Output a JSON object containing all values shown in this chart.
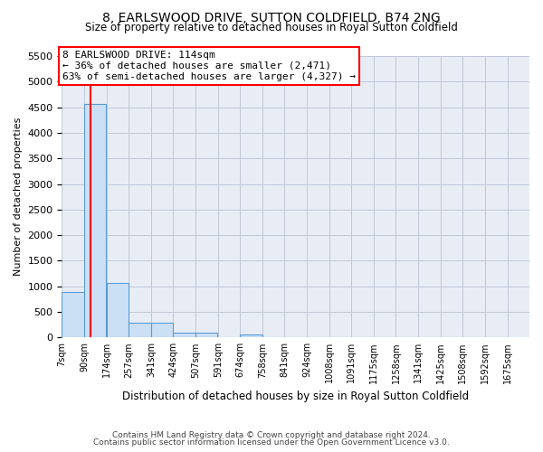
{
  "title": "8, EARLSWOOD DRIVE, SUTTON COLDFIELD, B74 2NG",
  "subtitle": "Size of property relative to detached houses in Royal Sutton Coldfield",
  "xlabel": "Distribution of detached houses by size in Royal Sutton Coldfield",
  "ylabel": "Number of detached properties",
  "footer1": "Contains HM Land Registry data © Crown copyright and database right 2024.",
  "footer2": "Contains public sector information licensed under the Open Government Licence v3.0.",
  "bar_color": "#cce0f5",
  "bar_edge_color": "#5b9bd5",
  "grid_color": "#c0c8d8",
  "background_color": "#e8edf5",
  "annotation_text": "8 EARLSWOOD DRIVE: 114sqm\n← 36% of detached houses are smaller (2,471)\n63% of semi-detached houses are larger (4,327) →",
  "annotation_box_color": "white",
  "annotation_box_edge": "red",
  "vline_color": "red",
  "vline_x": 114,
  "categories": [
    "7sqm",
    "90sqm",
    "174sqm",
    "257sqm",
    "341sqm",
    "424sqm",
    "507sqm",
    "591sqm",
    "674sqm",
    "758sqm",
    "841sqm",
    "924sqm",
    "1008sqm",
    "1091sqm",
    "1175sqm",
    "1258sqm",
    "1341sqm",
    "1425sqm",
    "1508sqm",
    "1592sqm",
    "1675sqm"
  ],
  "bin_edges": [
    7,
    90,
    174,
    257,
    341,
    424,
    507,
    591,
    674,
    758,
    841,
    924,
    1008,
    1091,
    1175,
    1258,
    1341,
    1425,
    1508,
    1592,
    1675
  ],
  "bar_heights": [
    880,
    4560,
    1060,
    290,
    290,
    85,
    85,
    0,
    60,
    0,
    0,
    0,
    0,
    0,
    0,
    0,
    0,
    0,
    0,
    0
  ],
  "ylim": [
    0,
    5500
  ],
  "yticks": [
    0,
    500,
    1000,
    1500,
    2000,
    2500,
    3000,
    3500,
    4000,
    4500,
    5000,
    5500
  ],
  "title_fontsize": 10,
  "subtitle_fontsize": 8.5
}
